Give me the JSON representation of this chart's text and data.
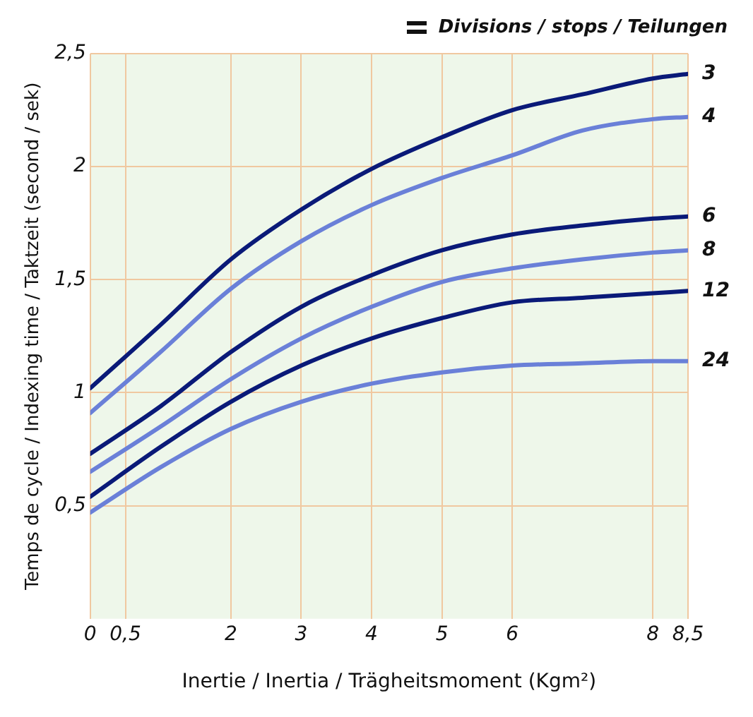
{
  "chart_data": {
    "type": "line",
    "xlabel": "Inertie / Inertia / Trägheitsmoment (Kgm²)",
    "ylabel": "Temps de cycle / Indexing time / Taktzeit (second / sek)",
    "legend_title": "Divisions / stops / Teilungen",
    "x": [
      0,
      1,
      2,
      3,
      4,
      5,
      6,
      7,
      8,
      8.5
    ],
    "series": [
      {
        "name": "3",
        "color": "#0a1a78",
        "values": [
          1.02,
          1.3,
          1.59,
          1.81,
          1.99,
          2.13,
          2.25,
          2.32,
          2.39,
          2.41
        ]
      },
      {
        "name": "4",
        "color": "#6a80d8",
        "values": [
          0.91,
          1.18,
          1.46,
          1.67,
          1.83,
          1.95,
          2.05,
          2.16,
          2.21,
          2.22
        ]
      },
      {
        "name": "6",
        "color": "#0a1a78",
        "values": [
          0.73,
          0.94,
          1.18,
          1.38,
          1.52,
          1.63,
          1.7,
          1.74,
          1.77,
          1.78
        ]
      },
      {
        "name": "8",
        "color": "#6a80d8",
        "values": [
          0.65,
          0.85,
          1.06,
          1.24,
          1.38,
          1.49,
          1.55,
          1.59,
          1.62,
          1.63
        ]
      },
      {
        "name": "12",
        "color": "#0a1a78",
        "values": [
          0.54,
          0.76,
          0.96,
          1.12,
          1.24,
          1.33,
          1.4,
          1.42,
          1.44,
          1.45
        ]
      },
      {
        "name": "24",
        "color": "#6a80d8",
        "values": [
          0.47,
          0.67,
          0.84,
          0.96,
          1.04,
          1.09,
          1.12,
          1.13,
          1.14,
          1.14
        ]
      }
    ],
    "xlim": [
      0,
      8.5
    ],
    "xticks": [
      0,
      {
        "value": 0.5,
        "label": "0,5"
      },
      2,
      3,
      4,
      5,
      6,
      8,
      {
        "value": 8.5,
        "label": "8,5"
      }
    ],
    "ylim": [
      0,
      2.5
    ],
    "yticks": [
      {
        "value": 0.5,
        "label": "0,5"
      },
      1,
      {
        "value": 1.5,
        "label": "1,5"
      },
      2,
      {
        "value": 2.5,
        "label": "2,5"
      }
    ],
    "grid": true,
    "marker": "none",
    "line_style": "solid"
  }
}
